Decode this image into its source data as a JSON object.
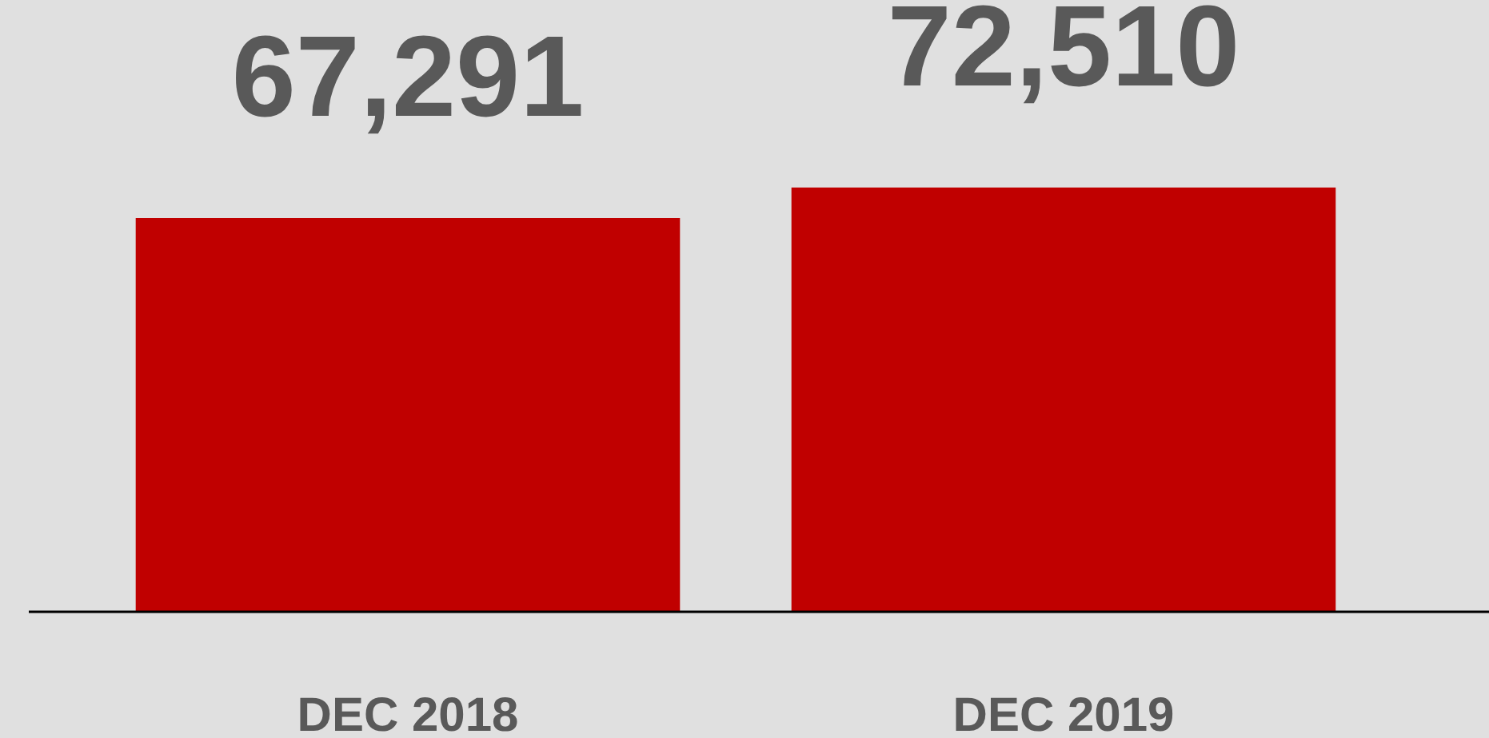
{
  "chart_data": {
    "type": "bar",
    "categories": [
      "DEC 2018",
      "DEC 2019"
    ],
    "values": [
      67291,
      72510
    ],
    "value_labels": [
      "67,291",
      "72,510"
    ],
    "color": "#c00000",
    "grid": false,
    "legend": false
  }
}
